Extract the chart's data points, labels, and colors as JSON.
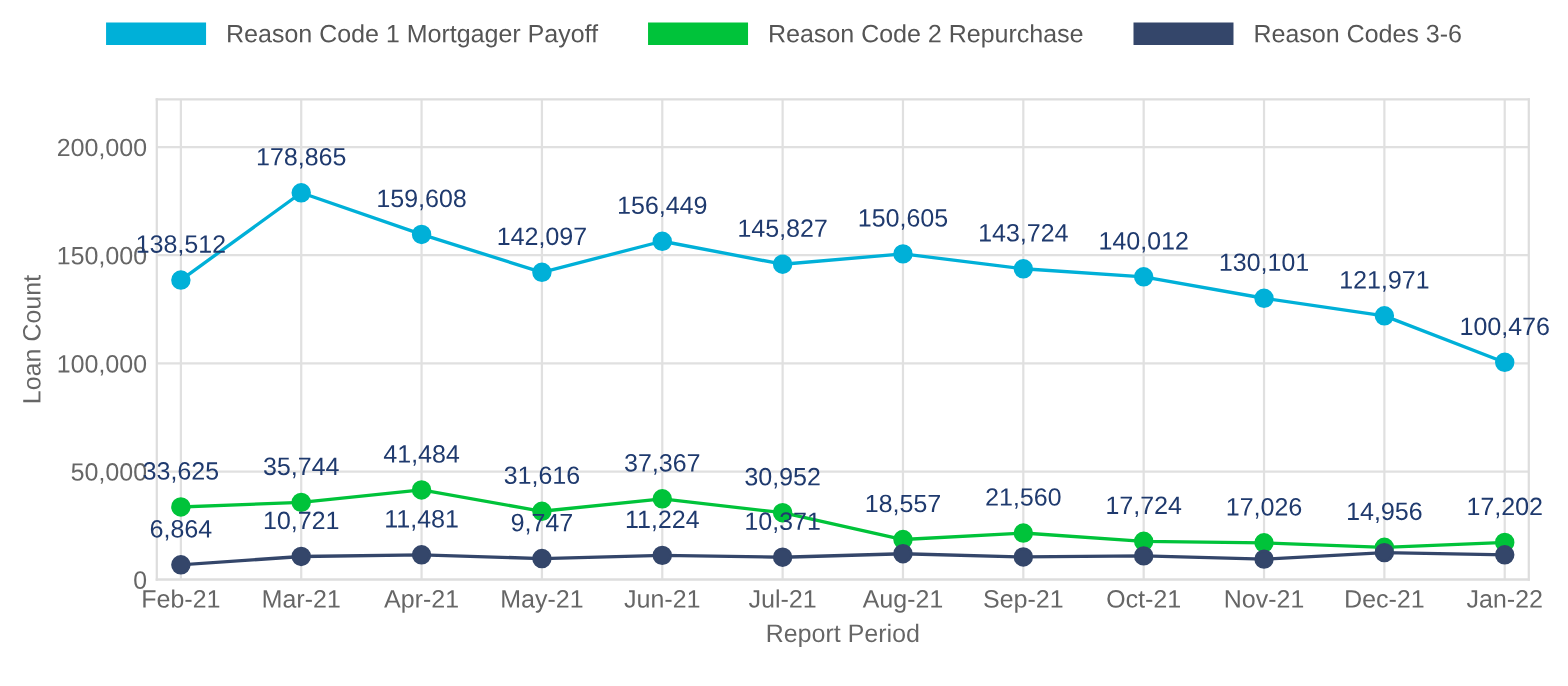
{
  "chart_data": {
    "type": "line",
    "xlabel": "Report Period",
    "ylabel": "Loan Count",
    "categories": [
      "Feb-21",
      "Mar-21",
      "Apr-21",
      "May-21",
      "Jun-21",
      "Jul-21",
      "Aug-21",
      "Sep-21",
      "Oct-21",
      "Nov-21",
      "Dec-21",
      "Jan-22"
    ],
    "series": [
      {
        "name": "Reason Code 1 Mortgager Payoff",
        "color": "#00b0d8",
        "values": [
          138512,
          178865,
          159608,
          142097,
          156449,
          145827,
          150605,
          143724,
          140012,
          130101,
          121971,
          100476
        ],
        "value_labels": [
          "138,512",
          "178,865",
          "159,608",
          "142,097",
          "156,449",
          "145,827",
          "150,605",
          "143,724",
          "140,012",
          "130,101",
          "121,971",
          "100,476"
        ]
      },
      {
        "name": "Reason Code 2 Repurchase",
        "color": "#00c33a",
        "values": [
          33625,
          35744,
          41484,
          31616,
          37367,
          30952,
          18557,
          21560,
          17724,
          17026,
          14956,
          17202
        ],
        "value_labels": [
          "33,625",
          "35,744",
          "41,484",
          "31,616",
          "37,367",
          "30,952",
          "18,557",
          "21,560",
          "17,724",
          "17,026",
          "14,956",
          "17,202"
        ]
      },
      {
        "name": "Reason Codes 3-6",
        "color": "#34466a",
        "values": [
          6864,
          10721,
          11481,
          9747,
          11224,
          10371,
          12000,
          10500,
          11000,
          9500,
          12500,
          11500
        ],
        "value_labels": [
          "6,864",
          "10,721",
          "11,481",
          "9,747",
          "11,224",
          "10,371",
          null,
          null,
          null,
          null,
          null,
          null
        ]
      }
    ],
    "ylim": [
      0,
      222000
    ],
    "yticks": [
      {
        "value": 0,
        "label": "0"
      },
      {
        "value": 50000,
        "label": "50,000"
      },
      {
        "value": 100000,
        "label": "100,000"
      },
      {
        "value": 150000,
        "label": "150,000"
      },
      {
        "value": 200000,
        "label": "200,000"
      }
    ],
    "grid": true,
    "legend": "top",
    "marker": "circle"
  }
}
